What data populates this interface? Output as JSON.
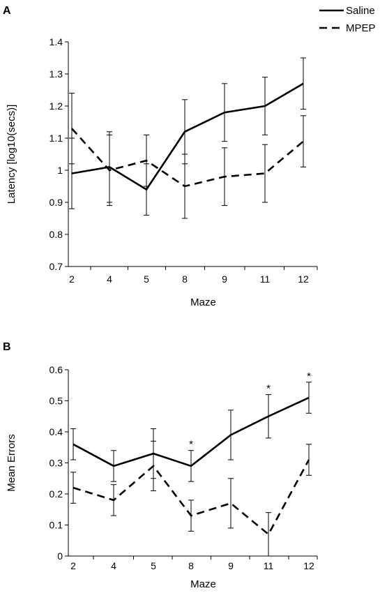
{
  "figure": {
    "legend": [
      {
        "name": "Saline",
        "style": "solid"
      },
      {
        "name": "MPEP",
        "style": "dashed"
      }
    ]
  },
  "chart_data": [
    {
      "type": "line",
      "panel": "A",
      "categories": [
        "2",
        "4",
        "5",
        "8",
        "9",
        "11",
        "12"
      ],
      "xlabel": "Maze",
      "ylabel": "Latency [log10(secs)]",
      "ylim": [
        0.7,
        1.4
      ],
      "yticks": [
        0.7,
        0.8,
        0.9,
        1,
        1.1,
        1.2,
        1.3,
        1.4
      ],
      "ytick_labels": [
        "0.7",
        "0.8",
        "0.9",
        "1",
        "1.1",
        "1.2",
        "1.3",
        "1.4"
      ],
      "grid": false,
      "legend_position": "top-right",
      "series": [
        {
          "name": "Saline",
          "line": "solid",
          "values": [
            0.99,
            1.01,
            0.94,
            1.12,
            1.18,
            1.2,
            1.27
          ],
          "error": [
            0.11,
            0.11,
            0.08,
            0.1,
            0.09,
            0.09,
            0.08
          ]
        },
        {
          "name": "MPEP",
          "line": "dashed",
          "values": [
            1.13,
            1.0,
            1.03,
            0.95,
            0.98,
            0.99,
            1.09
          ],
          "error": [
            0.11,
            0.11,
            0.08,
            0.1,
            0.09,
            0.09,
            0.08
          ]
        }
      ],
      "annotations": []
    },
    {
      "type": "line",
      "panel": "B",
      "categories": [
        "2",
        "4",
        "5",
        "8",
        "9",
        "11",
        "12"
      ],
      "xlabel": "Maze",
      "ylabel": "Mean Errors",
      "ylim": [
        0,
        0.6
      ],
      "yticks": [
        0,
        0.1,
        0.2,
        0.3,
        0.4,
        0.5,
        0.6
      ],
      "ytick_labels": [
        "0",
        "0.1",
        "0.2",
        "0.3",
        "0.4",
        "0.5",
        "0.6"
      ],
      "grid": false,
      "series": [
        {
          "name": "Saline",
          "line": "solid",
          "values": [
            0.36,
            0.29,
            0.33,
            0.29,
            0.39,
            0.45,
            0.51
          ],
          "error": [
            0.05,
            0.05,
            0.08,
            0.05,
            0.08,
            0.07,
            0.05
          ]
        },
        {
          "name": "MPEP",
          "line": "dashed",
          "values": [
            0.22,
            0.18,
            0.29,
            0.13,
            0.17,
            0.07,
            0.31
          ],
          "error": [
            0.05,
            0.05,
            0.08,
            0.05,
            0.08,
            0.07,
            0.05
          ]
        }
      ],
      "annotations": [
        {
          "text": "*",
          "category": "8"
        },
        {
          "text": "*",
          "category": "11"
        },
        {
          "text": "*",
          "category": "12"
        }
      ]
    }
  ]
}
